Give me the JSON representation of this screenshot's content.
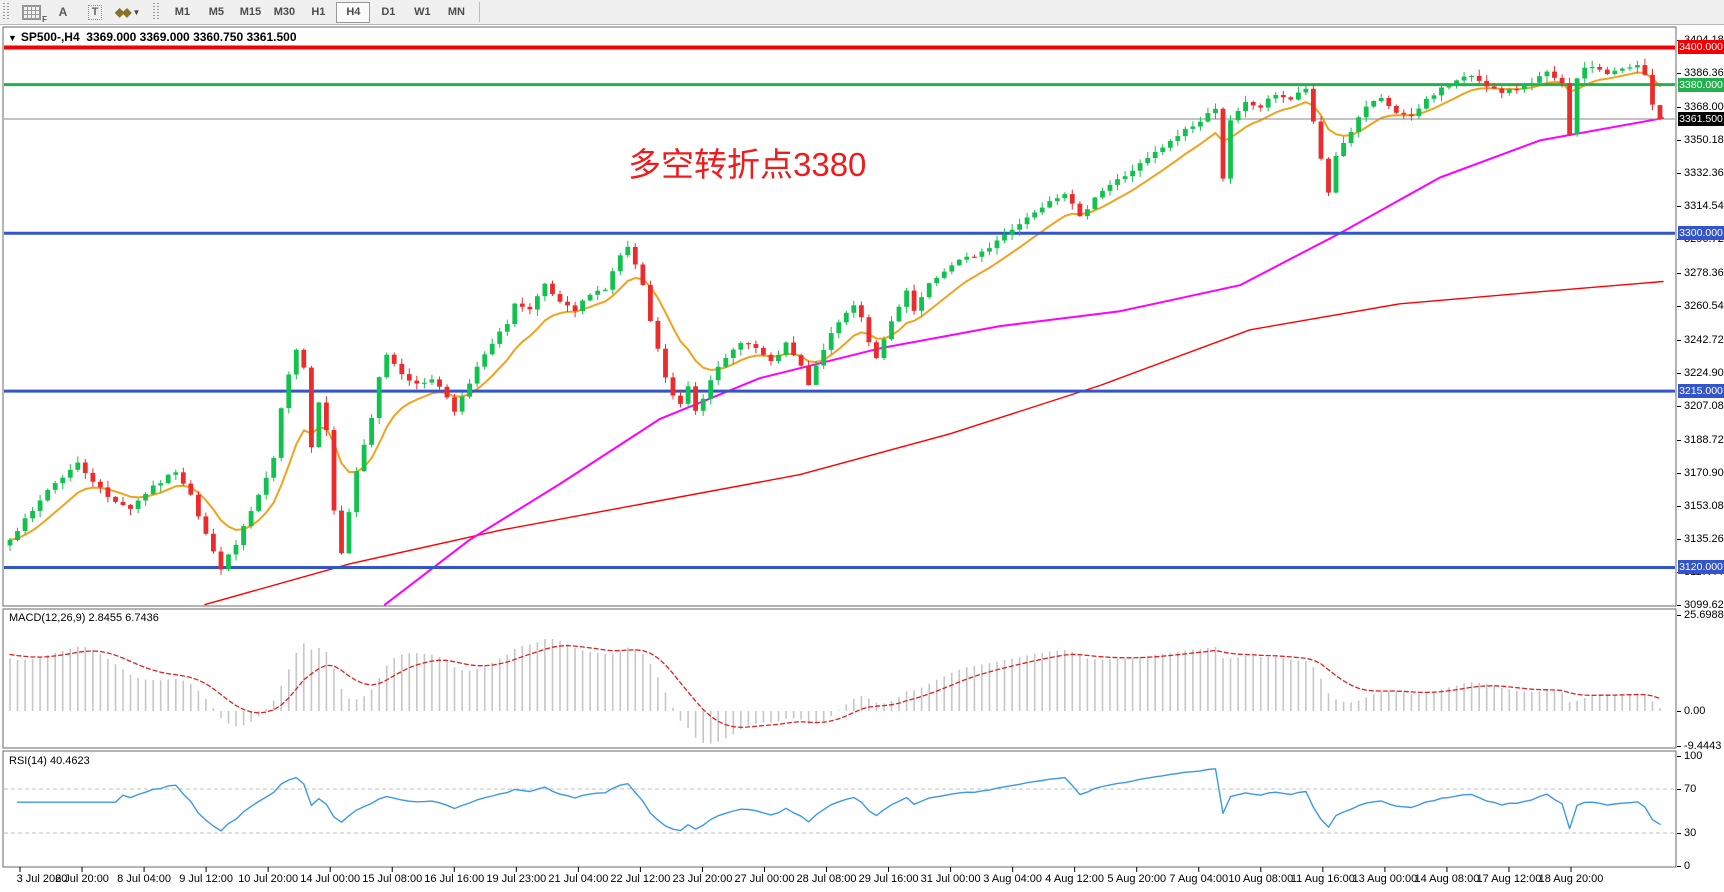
{
  "toolbar": {
    "tools": [
      {
        "name": "grid-f-tool",
        "label": "F"
      },
      {
        "name": "text-label-tool",
        "label": "A"
      },
      {
        "name": "text-box-tool",
        "label": "T"
      },
      {
        "name": "arrows-tool",
        "label": "◆◆"
      }
    ],
    "timeframes": [
      {
        "label": "M1",
        "active": false
      },
      {
        "label": "M5",
        "active": false
      },
      {
        "label": "M15",
        "active": false
      },
      {
        "label": "M30",
        "active": false
      },
      {
        "label": "H1",
        "active": false
      },
      {
        "label": "H4",
        "active": true
      },
      {
        "label": "D1",
        "active": false
      },
      {
        "label": "W1",
        "active": false
      },
      {
        "label": "MN",
        "active": false
      }
    ]
  },
  "chart": {
    "symbol": "SP500-,H4",
    "ohlc_line": "3369.000 3369.000 3360.750 3361.500",
    "annotation": {
      "text": "多空转折点3380",
      "color": "#ee1c1c"
    }
  },
  "macd_panel": {
    "label": "MACD(12,26,9) 2.8455 6.7436",
    "axis": [
      "25.6988",
      "0.00",
      "-9.4443"
    ]
  },
  "rsi_panel": {
    "label": "RSI(14) 40.4623",
    "axis": [
      "100",
      "70",
      "30",
      "0"
    ]
  },
  "chart_data": {
    "type": "candlestick",
    "symbol": "SP500-",
    "timeframe": "H4",
    "last_ohlc": {
      "open": 3369.0,
      "high": 3369.0,
      "low": 3360.75,
      "close": 3361.5
    },
    "price_axis_ticks": [
      3404.18,
      3386.36,
      3368.0,
      3350.18,
      3332.36,
      3314.54,
      3296.72,
      3278.36,
      3260.54,
      3242.72,
      3224.9,
      3207.08,
      3188.72,
      3170.9,
      3153.08,
      3135.26,
      3117.44,
      3099.62
    ],
    "price_axis_labels": [
      "3404.180",
      "3386.360",
      "3368.000",
      "3350.180",
      "3332.360",
      "3314.540",
      "3296.720",
      "3278.360",
      "3260.540",
      "3242.720",
      "3224.900",
      "3207.080",
      "3188.720",
      "3170.900",
      "3153.080",
      "3135.260",
      "3117.440",
      "3099.620"
    ],
    "levels": [
      {
        "label": "3400.000",
        "price": 3400.0,
        "line_color": "#f40000",
        "badge_bg": "#f40000",
        "width": 4
      },
      {
        "label": "3380.000",
        "price": 3380.0,
        "line_color": "#22b14c",
        "badge_bg": "#22b14c",
        "width": 3
      },
      {
        "label": "3361.500",
        "price": 3361.5,
        "line_color": "#8a8a8a",
        "badge_bg": "#000000",
        "width": 1
      },
      {
        "label": "3300.000",
        "price": 3300.0,
        "line_color": "#3355cc",
        "badge_bg": "#3355cc",
        "width": 3
      },
      {
        "label": "3215.000",
        "price": 3215.0,
        "line_color": "#3355cc",
        "badge_bg": "#3355cc",
        "width": 3
      },
      {
        "label": "3120.000",
        "price": 3120.0,
        "line_color": "#3355cc",
        "badge_bg": "#3355cc",
        "width": 3
      }
    ],
    "bars": 220,
    "close_path_anchors": [
      [
        0,
        3136
      ],
      [
        3,
        3150
      ],
      [
        5,
        3162
      ],
      [
        9,
        3176
      ],
      [
        13,
        3158
      ],
      [
        16,
        3152
      ],
      [
        18,
        3160
      ],
      [
        22,
        3172
      ],
      [
        24,
        3160
      ],
      [
        25,
        3148
      ],
      [
        27,
        3128
      ],
      [
        28,
        3120
      ],
      [
        30,
        3132
      ],
      [
        31,
        3142
      ],
      [
        33,
        3158
      ],
      [
        35,
        3178
      ],
      [
        36,
        3205
      ],
      [
        37,
        3225
      ],
      [
        38,
        3238
      ],
      [
        39,
        3228
      ],
      [
        40,
        3185
      ],
      [
        41,
        3210
      ],
      [
        42,
        3195
      ],
      [
        43,
        3150
      ],
      [
        44,
        3128
      ],
      [
        45,
        3150
      ],
      [
        46,
        3172
      ],
      [
        47,
        3185
      ],
      [
        48,
        3200
      ],
      [
        49,
        3222
      ],
      [
        50,
        3235
      ],
      [
        52,
        3225
      ],
      [
        54,
        3218
      ],
      [
        56,
        3222
      ],
      [
        58,
        3212
      ],
      [
        59,
        3205
      ],
      [
        61,
        3218
      ],
      [
        62,
        3228
      ],
      [
        64,
        3240
      ],
      [
        66,
        3252
      ],
      [
        67,
        3262
      ],
      [
        69,
        3258
      ],
      [
        71,
        3272
      ],
      [
        73,
        3262
      ],
      [
        75,
        3258
      ],
      [
        77,
        3268
      ],
      [
        79,
        3270
      ],
      [
        81,
        3288
      ],
      [
        82,
        3292
      ],
      [
        84,
        3272
      ],
      [
        85,
        3252
      ],
      [
        86,
        3238
      ],
      [
        87,
        3222
      ],
      [
        88,
        3212
      ],
      [
        89,
        3208
      ],
      [
        90,
        3218
      ],
      [
        91,
        3205
      ],
      [
        92,
        3212
      ],
      [
        93,
        3222
      ],
      [
        95,
        3232
      ],
      [
        97,
        3242
      ],
      [
        99,
        3238
      ],
      [
        101,
        3230
      ],
      [
        103,
        3240
      ],
      [
        105,
        3228
      ],
      [
        106,
        3218
      ],
      [
        108,
        3238
      ],
      [
        110,
        3252
      ],
      [
        112,
        3262
      ],
      [
        113,
        3255
      ],
      [
        114,
        3242
      ],
      [
        115,
        3232
      ],
      [
        117,
        3252
      ],
      [
        119,
        3268
      ],
      [
        120,
        3258
      ],
      [
        122,
        3272
      ],
      [
        124,
        3280
      ],
      [
        126,
        3285
      ],
      [
        128,
        3288
      ],
      [
        130,
        3292
      ],
      [
        132,
        3300
      ],
      [
        134,
        3305
      ],
      [
        136,
        3312
      ],
      [
        138,
        3318
      ],
      [
        140,
        3322
      ],
      [
        142,
        3308
      ],
      [
        144,
        3320
      ],
      [
        146,
        3326
      ],
      [
        148,
        3331
      ],
      [
        150,
        3337
      ],
      [
        152,
        3343
      ],
      [
        154,
        3349
      ],
      [
        156,
        3356
      ],
      [
        158,
        3360
      ],
      [
        160,
        3368
      ],
      [
        161,
        3330
      ],
      [
        162,
        3360
      ],
      [
        164,
        3370
      ],
      [
        166,
        3368
      ],
      [
        168,
        3375
      ],
      [
        170,
        3372
      ],
      [
        172,
        3378
      ],
      [
        174,
        3340
      ],
      [
        175,
        3322
      ],
      [
        176,
        3342
      ],
      [
        178,
        3355
      ],
      [
        180,
        3368
      ],
      [
        182,
        3372
      ],
      [
        184,
        3365
      ],
      [
        186,
        3362
      ],
      [
        188,
        3372
      ],
      [
        190,
        3378
      ],
      [
        192,
        3382
      ],
      [
        194,
        3385
      ],
      [
        196,
        3380
      ],
      [
        198,
        3375
      ],
      [
        200,
        3378
      ],
      [
        202,
        3382
      ],
      [
        204,
        3386
      ],
      [
        206,
        3380
      ],
      [
        207,
        3352
      ],
      [
        208,
        3384
      ],
      [
        209,
        3388
      ],
      [
        210,
        3390
      ],
      [
        212,
        3386
      ],
      [
        214,
        3388
      ],
      [
        216,
        3390
      ],
      [
        217,
        3385
      ],
      [
        218,
        3369
      ],
      [
        219,
        3361.5
      ]
    ],
    "ma_fast": {
      "color": "#f2a21c",
      "type": "ema10"
    },
    "ma_mid": {
      "color": "#ff00ff",
      "anchors_xprice": [
        [
          385,
          3100
        ],
        [
          470,
          3135
        ],
        [
          560,
          3165
        ],
        [
          660,
          3200
        ],
        [
          760,
          3222
        ],
        [
          880,
          3238
        ],
        [
          1000,
          3250
        ],
        [
          1120,
          3258
        ],
        [
          1240,
          3272
        ],
        [
          1340,
          3300
        ],
        [
          1440,
          3330
        ],
        [
          1540,
          3350
        ],
        [
          1663,
          3362
        ]
      ]
    },
    "ma_slow": {
      "color": "#ff0000",
      "anchors_xprice": [
        [
          205,
          3100
        ],
        [
          350,
          3122
        ],
        [
          500,
          3140
        ],
        [
          650,
          3155
        ],
        [
          800,
          3170
        ],
        [
          950,
          3192
        ],
        [
          1100,
          3218
        ],
        [
          1250,
          3248
        ],
        [
          1400,
          3262
        ],
        [
          1530,
          3268
        ],
        [
          1663,
          3274
        ]
      ]
    },
    "macd": {
      "fast": 12,
      "slow": 26,
      "signal": 9,
      "last_macd": 2.8455,
      "last_signal": 6.7436,
      "axis_max": 25.6988,
      "axis_min": -9.4443,
      "hist_color": "#c6c6c6",
      "signal_color": "#dd2222"
    },
    "rsi": {
      "period": 14,
      "last": 40.4623,
      "levels": [
        70,
        30
      ],
      "line_color": "#3b99e8"
    },
    "candle_up_color": "#12c24e",
    "candle_down_color": "#ec2c2c",
    "time_axis_labels": [
      "3 Jul 2020",
      "6 Jul 20:00",
      "8 Jul 04:00",
      "9 Jul 12:00",
      "10 Jul 20:00",
      "14 Jul 00:00",
      "15 Jul 08:00",
      "16 Jul 16:00",
      "19 Jul 23:00",
      "21 Jul 04:00",
      "22 Jul 12:00",
      "23 Jul 20:00",
      "27 Jul 00:00",
      "28 Jul 08:00",
      "29 Jul 16:00",
      "31 Jul 00:00",
      "3 Aug 04:00",
      "4 Aug 12:00",
      "5 Aug 20:00",
      "7 Aug 04:00",
      "10 Aug 08:00",
      "11 Aug 16:00",
      "13 Aug 00:00",
      "14 Aug 08:00",
      "17 Aug 12:00",
      "18 Aug 20:00"
    ]
  }
}
